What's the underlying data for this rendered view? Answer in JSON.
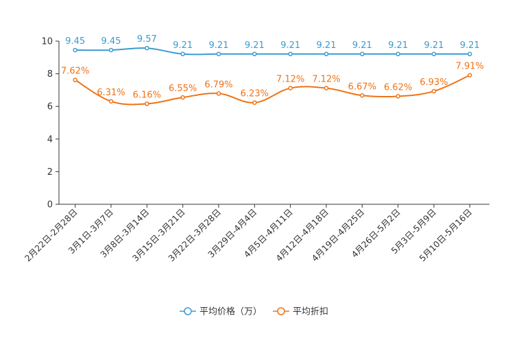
{
  "chart_data": {
    "type": "line",
    "categories": [
      "2月22日-2月28日",
      "3月1日-3月7日",
      "3月8日-3月14日",
      "3月15日-3月21日",
      "3月22日-3月28日",
      "3月29日-4月4日",
      "4月5日-4月11日",
      "4月12日-4月18日",
      "4月19日-4月25日",
      "4月26日-5月2日",
      "5月3日-5月9日",
      "5月10日-5月16日"
    ],
    "ylim": [
      0,
      10
    ],
    "yticks": [
      0,
      2,
      4,
      6,
      8,
      10
    ],
    "series": [
      {
        "name": "平均价格（万）",
        "color": "#3a9bd1",
        "values": [
          9.45,
          9.45,
          9.57,
          9.21,
          9.21,
          9.21,
          9.21,
          9.21,
          9.21,
          9.21,
          9.21,
          9.21
        ],
        "labels": [
          "9.45",
          "9.45",
          "9.57",
          "9.21",
          "9.21",
          "9.21",
          "9.21",
          "9.21",
          "9.21",
          "9.21",
          "9.21",
          "9.21"
        ]
      },
      {
        "name": "平均折扣",
        "color": "#f07213",
        "values": [
          7.62,
          6.31,
          6.16,
          6.55,
          6.79,
          6.23,
          7.12,
          7.12,
          6.67,
          6.62,
          6.93,
          7.91
        ],
        "labels": [
          "7.62%",
          "6.31%",
          "6.16%",
          "6.55%",
          "6.79%",
          "6.23%",
          "7.12%",
          "7.12%",
          "6.67%",
          "6.62%",
          "6.93%",
          "7.91%"
        ]
      }
    ],
    "legend_position": "bottom-center"
  }
}
